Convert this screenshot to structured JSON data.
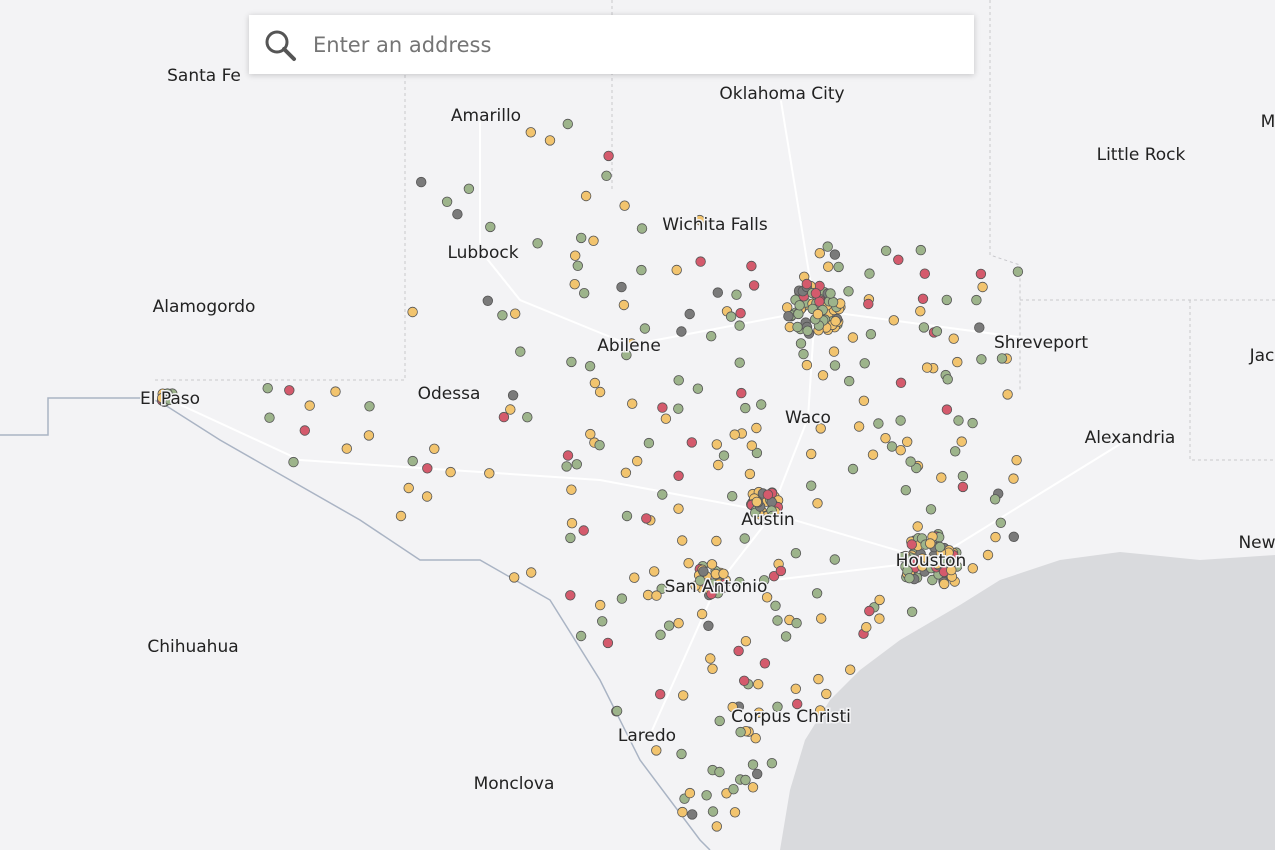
{
  "search": {
    "placeholder": "Enter an address"
  },
  "cities": [
    "Santa Fe",
    "Amarillo",
    "Oklahoma City",
    "Little Rock",
    "M",
    "Wichita Falls",
    "Lubbock",
    "Alamogordo",
    "Abilene",
    "Shreveport",
    "Jac",
    "El Paso",
    "Odessa",
    "Waco",
    "Alexandria",
    "Austin",
    "New",
    "Houston",
    "San Antonio",
    "Chihuahua",
    "Corpus Christi",
    "Laredo",
    "Monclova"
  ]
}
